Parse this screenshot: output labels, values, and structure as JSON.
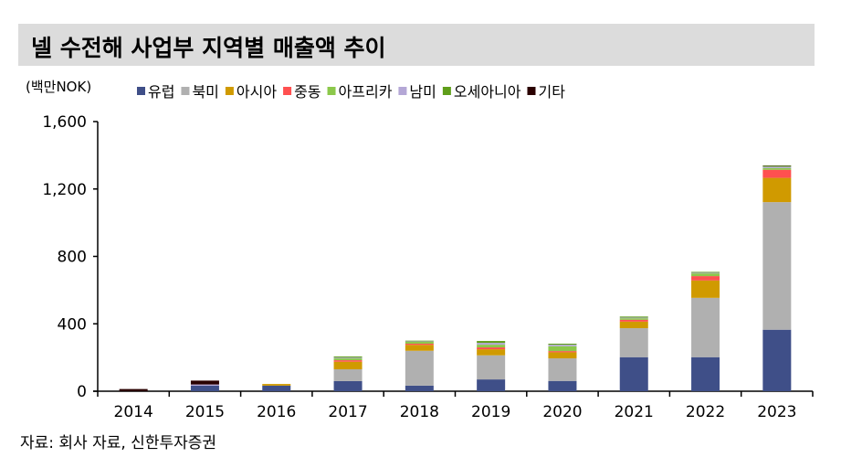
{
  "title": "넬 수전해 사업부 지역별 매출액 추이",
  "source": "자료: 회사 자료, 신한투자증권",
  "chart_data": {
    "type": "bar",
    "stacked": true,
    "unit_label": "(백만NOK)",
    "categories": [
      "2014",
      "2015",
      "2016",
      "2017",
      "2018",
      "2019",
      "2020",
      "2021",
      "2022",
      "2023"
    ],
    "ylim": [
      0,
      1600
    ],
    "yticks": [
      0,
      400,
      800,
      1200,
      1600
    ],
    "ytick_labels": [
      "0",
      "400",
      "800",
      "1,200",
      "1,600"
    ],
    "legend_position": "top",
    "grid": false,
    "series": [
      {
        "name": "유럽",
        "color": "#3f4f88",
        "values": [
          0,
          33,
          33,
          60,
          33,
          70,
          61,
          202,
          202,
          365
        ]
      },
      {
        "name": "북미",
        "color": "#b0b0b0",
        "values": [
          0,
          0,
          0,
          70,
          207,
          143,
          134,
          172,
          352,
          757
        ]
      },
      {
        "name": "아시아",
        "color": "#d09a00",
        "values": [
          0,
          0,
          10,
          45,
          35,
          36,
          36,
          39,
          103,
          144
        ]
      },
      {
        "name": "중동",
        "color": "#ff5050",
        "values": [
          0,
          0,
          0,
          9,
          7,
          11,
          7,
          11,
          26,
          48
        ]
      },
      {
        "name": "아프리카",
        "color": "#8cc84b",
        "values": [
          0,
          0,
          0,
          11,
          11,
          16,
          29,
          9,
          16,
          10
        ]
      },
      {
        "name": "남미",
        "color": "#b4a7d6",
        "values": [
          0,
          7,
          0,
          5,
          3,
          11,
          9,
          4,
          4,
          8
        ]
      },
      {
        "name": "오세아니아",
        "color": "#5f9e1a",
        "values": [
          0,
          0,
          0,
          6,
          4,
          11,
          6,
          6,
          5,
          6
        ]
      },
      {
        "name": "기타",
        "color": "#2a0000",
        "values": [
          13,
          23,
          0,
          0,
          0,
          0,
          0,
          0,
          0,
          2
        ]
      }
    ]
  }
}
